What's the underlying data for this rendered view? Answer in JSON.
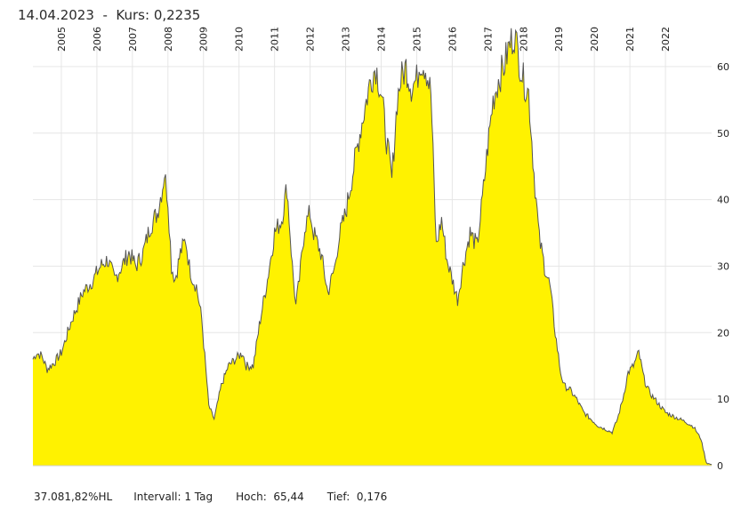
{
  "header": {
    "date": "14.04.2023",
    "separator": "-",
    "kurs_label": "Kurs:",
    "kurs_value": "0,2235"
  },
  "footer": {
    "performance": "37.081,82%HL",
    "interval_label": "Intervall:",
    "interval_value": "1 Tag",
    "high_label": "Hoch:",
    "high_value": "65,44",
    "low_label": "Tief:",
    "low_value": "0,176"
  },
  "colors": {
    "fill": "#fff200",
    "line": "#555555",
    "grid": "#e6e6e6"
  },
  "chart_data": {
    "type": "area",
    "title": "",
    "xlabel": "",
    "ylabel": "",
    "ylim": [
      0,
      66
    ],
    "y_ticks": [
      0,
      10,
      20,
      30,
      40,
      50,
      60
    ],
    "x_range": [
      2004.2,
      2023.3
    ],
    "x_ticks": [
      {
        "year": 2005,
        "label": "2005"
      },
      {
        "year": 2006,
        "label": "2006"
      },
      {
        "year": 2007,
        "label": "2007"
      },
      {
        "year": 2008,
        "label": "2008"
      },
      {
        "year": 2009,
        "label": "2009"
      },
      {
        "year": 2010,
        "label": "2010"
      },
      {
        "year": 2011,
        "label": "2011"
      },
      {
        "year": 2012,
        "label": "2012"
      },
      {
        "year": 2013,
        "label": "2013"
      },
      {
        "year": 2014,
        "label": "2014"
      },
      {
        "year": 2015,
        "label": "2015"
      },
      {
        "year": 2016,
        "label": "2016"
      },
      {
        "year": 2017,
        "label": "2017"
      },
      {
        "year": 2018,
        "label": "2018"
      },
      {
        "year": 2019,
        "label": "2019"
      },
      {
        "year": 2020,
        "label": "2020"
      },
      {
        "year": 2021,
        "label": "2021"
      },
      {
        "year": 2022,
        "label": "2022"
      }
    ],
    "series": [
      {
        "name": "Kurs",
        "x": [
          2004.2,
          2004.3,
          2004.45,
          2004.6,
          2004.8,
          2005.0,
          2005.3,
          2005.6,
          2005.9,
          2006.1,
          2006.3,
          2006.5,
          2006.7,
          2006.9,
          2007.1,
          2007.3,
          2007.5,
          2007.7,
          2007.85,
          2007.9,
          2008.0,
          2008.1,
          2008.2,
          2008.35,
          2008.5,
          2008.6,
          2008.7,
          2008.8,
          2008.95,
          2009.15,
          2009.3,
          2009.5,
          2009.7,
          2009.9,
          2010.1,
          2010.2,
          2010.4,
          2010.6,
          2010.8,
          2011.0,
          2011.2,
          2011.35,
          2011.5,
          2011.6,
          2011.7,
          2011.85,
          2012.0,
          2012.1,
          2012.3,
          2012.5,
          2012.7,
          2012.8,
          2013.0,
          2013.2,
          2013.4,
          2013.55,
          2013.7,
          2013.85,
          2014.0,
          2014.15,
          2014.3,
          2014.45,
          2014.55,
          2014.7,
          2014.85,
          2015.0,
          2015.1,
          2015.25,
          2015.4,
          2015.55,
          2015.7,
          2015.85,
          2016.0,
          2016.15,
          2016.3,
          2016.5,
          2016.7,
          2016.85,
          2017.0,
          2017.15,
          2017.3,
          2017.45,
          2017.6,
          2017.75,
          2017.85,
          2018.0,
          2018.15,
          2018.3,
          2018.45,
          2018.6,
          2018.75,
          2018.9,
          2019.05,
          2019.15,
          2019.3,
          2019.5,
          2019.7,
          2019.9,
          2020.1,
          2020.3,
          2020.5,
          2020.65,
          2020.8,
          2020.95,
          2021.1,
          2021.25,
          2021.4,
          2021.55,
          2021.7,
          2021.85,
          2022.0,
          2022.2,
          2022.4,
          2022.6,
          2022.8,
          2023.0,
          2023.15,
          2023.25,
          2023.3
        ],
        "values": [
          16,
          17,
          16.5,
          14.5,
          15.5,
          17,
          22,
          26,
          28,
          30,
          31,
          28,
          30,
          32,
          30,
          32,
          36,
          38,
          42,
          44,
          40,
          30,
          28,
          32,
          34,
          30,
          28,
          27,
          22,
          9,
          7,
          12,
          15,
          16,
          17,
          15,
          15,
          22,
          28,
          35,
          37,
          42,
          30,
          24,
          28,
          36,
          38,
          35,
          32,
          26,
          30,
          34,
          38,
          44,
          50,
          54,
          58,
          60,
          56,
          49,
          43,
          55,
          58,
          60,
          57,
          58,
          61,
          60,
          56,
          33,
          37,
          31,
          28,
          25,
          30,
          35,
          33,
          40,
          48,
          55,
          58,
          60,
          63,
          65,
          62,
          58,
          56,
          44,
          34,
          30,
          27,
          20,
          14,
          12,
          11.5,
          10,
          8,
          7,
          6,
          5.5,
          5,
          7,
          10,
          14,
          15,
          17,
          13,
          11,
          10,
          9,
          8,
          7.5,
          7,
          6.5,
          5.8,
          4,
          0.5,
          0.2,
          0.2
        ]
      }
    ]
  }
}
